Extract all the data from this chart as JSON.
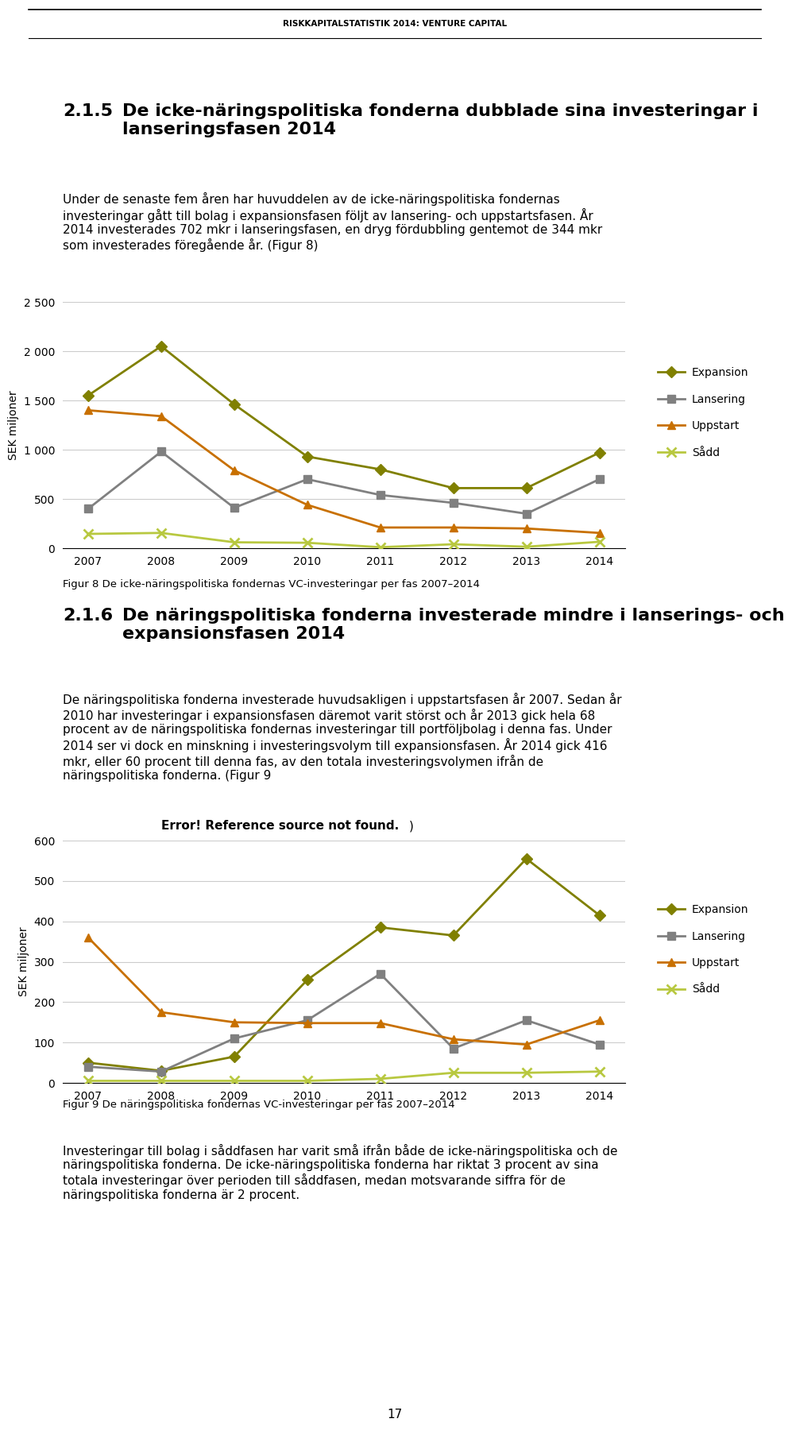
{
  "header": "RISKKAPITALSTATISTIK 2014: VENTURE CAPITAL",
  "section_title": "2.1.5   De icke-näringspolitiska fonderna dubblade sina investeringar i\n          lanseringsfasen 2014",
  "section_body": "Under de senaste fem åren har huvuddelen av de icke-näringspolitiska fondernas\ninvesteringar gått till bolag i expansionsfasen följt av lansering- och uppstartsfasen. År\n2014 investerades 702 mkr i lanseringsfasen, en dryg fördubbling gentemot de 344 mkr\nsom investerades föregående år. (Figur 8)",
  "chart1": {
    "ylabel": "SEK miljoner",
    "years": [
      2007,
      2008,
      2009,
      2010,
      2011,
      2012,
      2013,
      2014
    ],
    "expansion": [
      1550,
      2050,
      1460,
      930,
      800,
      610,
      610,
      970
    ],
    "lansering": [
      400,
      980,
      410,
      700,
      540,
      460,
      350,
      700
    ],
    "uppstart": [
      1400,
      1340,
      790,
      440,
      210,
      210,
      200,
      155
    ],
    "sadd": [
      145,
      155,
      60,
      55,
      10,
      40,
      15,
      65
    ],
    "ylim": [
      0,
      2500
    ],
    "yticks": [
      0,
      500,
      1000,
      1500,
      2000,
      2500
    ],
    "colors": {
      "expansion": "#808000",
      "lansering": "#808080",
      "uppstart": "#c87000",
      "sadd": "#b8c840"
    },
    "legend_labels": [
      "Expansion",
      "Lansering",
      "Uppstart",
      "Sådd"
    ],
    "caption": "Figur 8 De icke-näringspolitiska fondernas VC-investeringar per fas 2007–2014"
  },
  "section2_title": "2.1.6   De näringspolitiska fonderna investerade mindre i lanserings- och\n          expansionsfasen 2014",
  "section2_body": "De näringspolitiska fonderna investerade huvudsakligen i uppstartsfasen år 2007. Sedan år\n2010 har investeringar i expansionsfasen däremot varit störst och år 2013 gick hela 68\nprocent av de näringspolitiska fondernas investeringar till portföljbolag i denna fas. Under\n2014 ser vi dock en minskning i investeringsvolym till expansionsfasen. År 2014 gick 416\nmkr, eller 60 procent till denna fas, av den totala investeringsvolymen ifrån de\nnäringspolitiska fonderna. (Figur 9",
  "section2_error": "Error! Reference source not found.",
  "section2_close": ")",
  "chart2": {
    "ylabel": "SEK miljoner",
    "years": [
      2007,
      2008,
      2009,
      2010,
      2011,
      2012,
      2013,
      2014
    ],
    "expansion": [
      50,
      30,
      65,
      255,
      385,
      365,
      555,
      415
    ],
    "lansering": [
      40,
      28,
      110,
      155,
      270,
      85,
      155,
      95
    ],
    "uppstart": [
      360,
      175,
      150,
      148,
      148,
      108,
      95,
      155
    ],
    "sadd": [
      5,
      5,
      5,
      5,
      10,
      25,
      25,
      28
    ],
    "ylim": [
      0,
      600
    ],
    "yticks": [
      0,
      100,
      200,
      300,
      400,
      500,
      600
    ],
    "colors": {
      "expansion": "#808000",
      "lansering": "#808080",
      "uppstart": "#c87000",
      "sadd": "#b8c840"
    },
    "legend_labels": [
      "Expansion",
      "Lansering",
      "Uppstart",
      "Sådd"
    ],
    "caption": "Figur 9 De näringspolitiska fondernas VC-investeringar per fas 2007–2014"
  },
  "footer_text": "Investeringar till bolag i såddfasen har varit små ifrån både de icke-näringspolitiska och de\nnäringspolitiska fonderna. De icke-näringspolitiska fonderna har riktat 3 procent av sina\ntotala investeringar över perioden till såddfasen, medan motsvarande siffra för de\nnäringspolitiska fonderna är 2 procent.",
  "page_number": "17",
  "header_fontsize": 7.5,
  "section_title_fontsize": 16,
  "body_fontsize": 11,
  "caption_fontsize": 9.5,
  "footer_fontsize": 11,
  "page_fontsize": 11
}
